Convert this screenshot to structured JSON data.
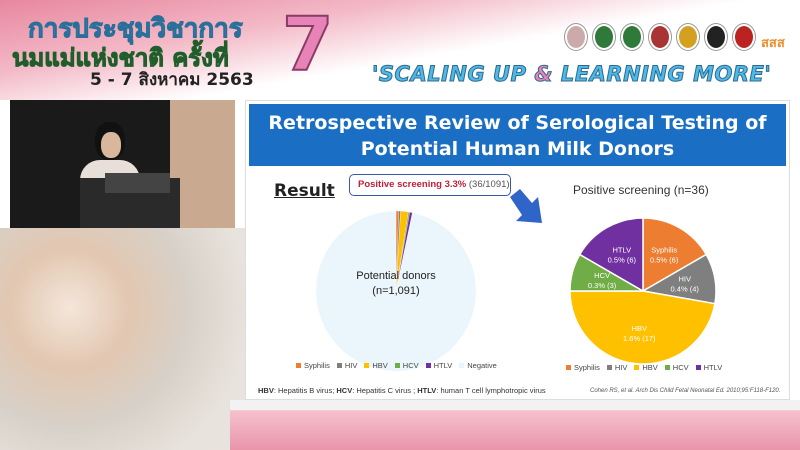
{
  "banner": {
    "title_line1": "การประชุมวิชาการ",
    "title_line2": "นมแม่แห่งชาติ ครั้งที่",
    "date": "5 - 7 สิงหาคม 2563",
    "edition": "7",
    "slogan_part1": "'SCALING UP ",
    "slogan_amp": "&",
    "slogan_part2": " LEARNING MORE'",
    "logo_text": "สสส"
  },
  "slide": {
    "title_line1": "Retrospective Review of Serological Testing of",
    "title_line2": "Potential Human Milk Donors",
    "result_heading": "Result",
    "callout_bold": "Positive screening 3.3%",
    "callout_rest": " (36/1091)",
    "footnote": {
      "hbv": "HBV",
      "hbv_text": ": Hepatitis B virus; ",
      "hcv": "HCV",
      "hcv_text": ": Hepatitis C virus ; ",
      "htlv": "HTLV",
      "htlv_text": ": human T cell lymphotropic virus"
    },
    "citation": "Cohen RS, et al. Arch Dis Child Fetal Neonatal Ed. 2010;95:F118-F120."
  },
  "colors": {
    "Syphilis": "#ed7d31",
    "HIV": "#7f7f7f",
    "HBV": "#ffc000",
    "HCV": "#70ad47",
    "HTLV": "#7030a0",
    "Negative": "#eaf6fc",
    "title_band": "#1a6fc4"
  },
  "chart_data": [
    {
      "type": "pie",
      "title": "",
      "center_label": "Potential donors",
      "center_sublabel": "(n=1,091)",
      "categories": [
        "Syphilis",
        "HIV",
        "HBV",
        "HCV",
        "HTLV",
        "Negative"
      ],
      "values": [
        6,
        4,
        17,
        3,
        6,
        1055
      ],
      "legend": "bottom"
    },
    {
      "type": "pie",
      "title": "Positive screening (n=36)",
      "categories": [
        "Syphilis",
        "HIV",
        "HBV",
        "HCV",
        "HTLV"
      ],
      "values": [
        6,
        4,
        17,
        3,
        6
      ],
      "data_labels": [
        "0.5% (6)",
        "0.4% (4)",
        "1.6% (17)",
        "0.3% (3)",
        "0.5% (6)"
      ],
      "legend": "bottom"
    }
  ]
}
